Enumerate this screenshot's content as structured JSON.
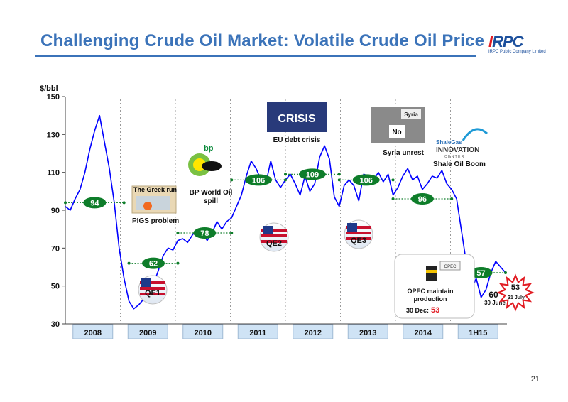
{
  "title": "Challenging Crude Oil Market: Volatile Crude Oil Price",
  "logo": {
    "brand": "IRPC",
    "subtitle": "IRPC Public Company Limited"
  },
  "page_number": "21",
  "colors": {
    "title": "#3b73b9",
    "line": "#0000ff",
    "pill": "#0e7d2a",
    "year_box": "#cfe3f5",
    "starburst": "#e11b22"
  },
  "chart_data": {
    "type": "line",
    "ylabel": "$/bbl",
    "ylim": [
      30,
      150
    ],
    "yticks": [
      30,
      50,
      70,
      90,
      110,
      130,
      150
    ],
    "grid": false,
    "periods": [
      "2008",
      "2009",
      "2010",
      "2011",
      "2012",
      "2013",
      "2014",
      "1H15"
    ],
    "series": [
      {
        "x": [
          0,
          1,
          2,
          3,
          4,
          5,
          6,
          7,
          8,
          9,
          10,
          11,
          12,
          13,
          14,
          15,
          16,
          17,
          18,
          19,
          20,
          21,
          22,
          23,
          24,
          25,
          26,
          27,
          28,
          29,
          30,
          31,
          32,
          33,
          34,
          35,
          36,
          37,
          38,
          39,
          40,
          41,
          42,
          43,
          44,
          45,
          46,
          47,
          48,
          49,
          50,
          51,
          52,
          53,
          54,
          55,
          56,
          57,
          58,
          59,
          60,
          61,
          62,
          63,
          64,
          65,
          66,
          67,
          68,
          69,
          70,
          71,
          72,
          73,
          74,
          75,
          76,
          77,
          78,
          79,
          80,
          81,
          82,
          83,
          84,
          85,
          86,
          87,
          88,
          89,
          90
        ],
        "values": [
          92,
          90,
          96,
          101,
          110,
          122,
          132,
          140,
          126,
          112,
          94,
          70,
          54,
          42,
          38,
          40,
          43,
          46,
          51,
          58,
          66,
          70,
          69,
          74,
          75,
          73,
          77,
          80,
          78,
          74,
          78,
          84,
          80,
          84,
          86,
          92,
          98,
          108,
          116,
          112,
          106,
          104,
          116,
          106,
          102,
          106,
          109,
          104,
          98,
          108,
          100,
          104,
          118,
          124,
          117,
          97,
          92,
          103,
          106,
          103,
          95,
          109,
          108,
          106,
          110,
          105,
          109,
          98,
          102,
          108,
          112,
          106,
          108,
          101,
          104,
          108,
          107,
          111,
          104,
          101,
          96,
          79,
          62,
          48,
          54,
          44,
          48,
          57,
          63,
          60,
          57
        ]
      }
    ],
    "period_averages": [
      {
        "label": "94",
        "x_start": 0,
        "x_end": 12,
        "value": 94
      },
      {
        "label": "62",
        "x_start": 13,
        "x_end": 23,
        "value": 62
      },
      {
        "label": "78",
        "x_start": 23,
        "x_end": 34,
        "value": 78
      },
      {
        "label": "106",
        "x_start": 34,
        "x_end": 45,
        "value": 106
      },
      {
        "label": "109",
        "x_start": 45,
        "x_end": 56,
        "value": 109
      },
      {
        "label": "106",
        "x_start": 56,
        "x_end": 67,
        "value": 106
      },
      {
        "label": "96",
        "x_start": 67,
        "x_end": 79,
        "value": 96
      },
      {
        "label": "57",
        "x_start": 80,
        "x_end": 90,
        "value": 57
      }
    ],
    "annotations": [
      {
        "name": "greek-run",
        "text": "The Greek run"
      },
      {
        "name": "pigs-problem",
        "text": "PIGS problem"
      },
      {
        "name": "bp-spill",
        "lines": [
          "BP World Oil",
          "spill"
        ]
      },
      {
        "name": "eu-crisis",
        "text": "EU debt crisis",
        "badge": "CRISIS"
      },
      {
        "name": "syria-unrest",
        "text": "Syria unrest",
        "badge": "Syria",
        "sign": "No"
      },
      {
        "name": "shale-boom",
        "text": "Shale Oil Boom",
        "logo_lines": [
          "ShaleGas",
          "INNOVATION",
          "C E N T E R"
        ]
      },
      {
        "name": "opec",
        "lines": [
          "OPEC maintain",
          "production"
        ],
        "date": "30 Dec:",
        "value": "53",
        "sign": "OPEC"
      },
      {
        "name": "june-price",
        "value": "60",
        "date": "30 June"
      },
      {
        "name": "july-price",
        "value": "53",
        "date": "31 July"
      }
    ],
    "qe_flags": [
      "QE1",
      "QE2",
      "QE3"
    ]
  }
}
